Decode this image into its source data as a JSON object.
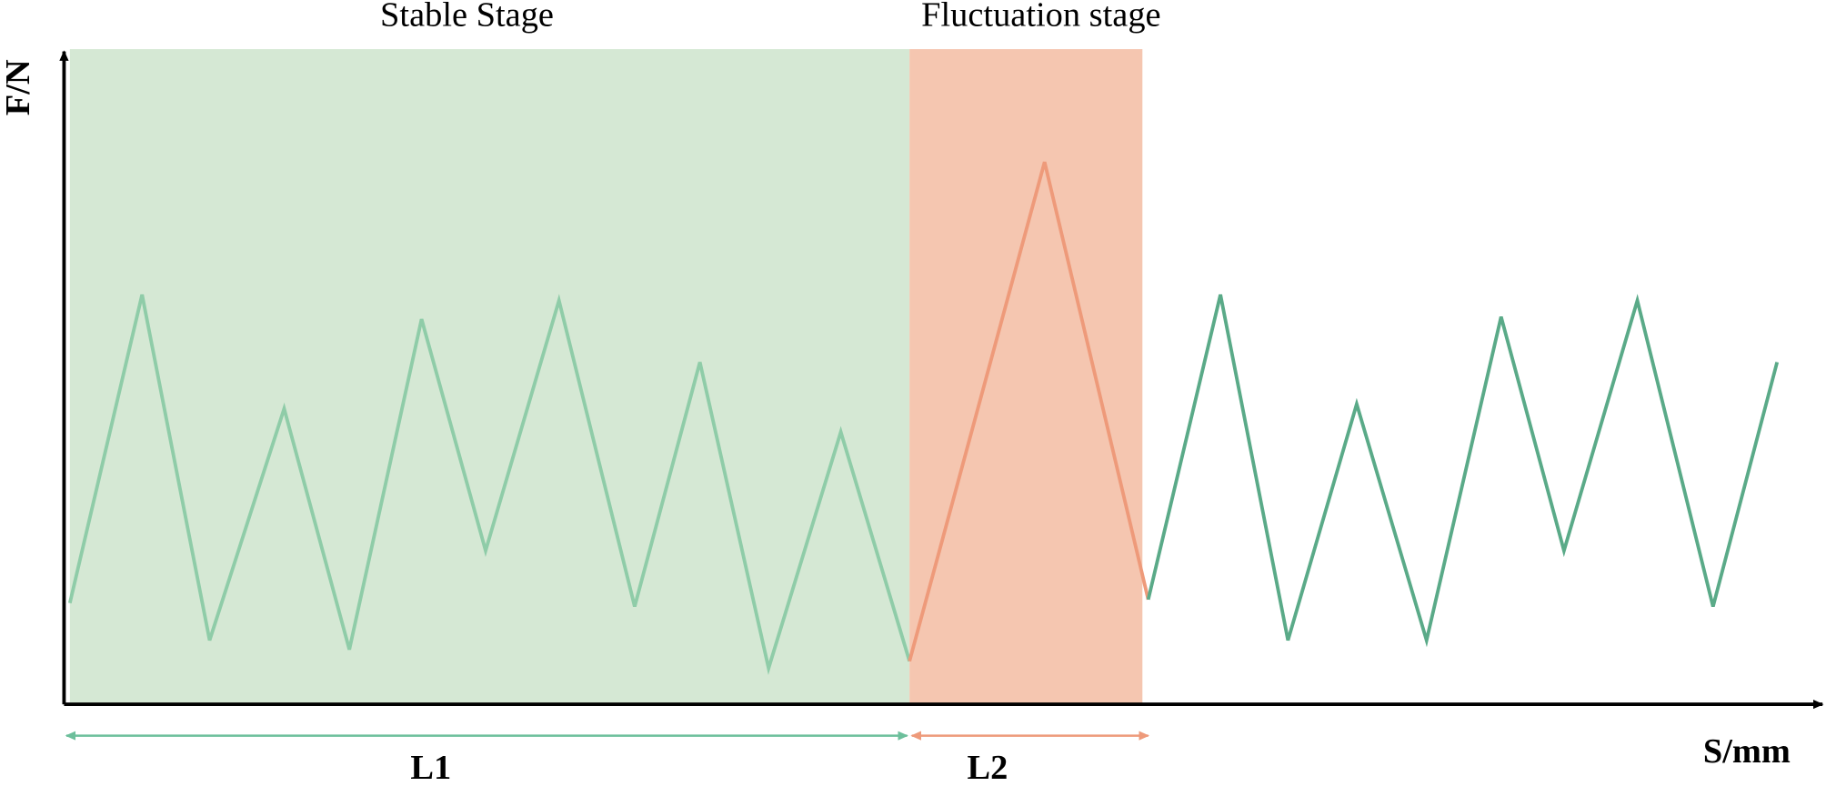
{
  "stages": [
    {
      "label": "Stable Stage",
      "span_label": "L1"
    },
    {
      "label": "Fluctuation stage",
      "span_label": "L2"
    }
  ],
  "axes": {
    "y_label": "F/N",
    "x_label": "S/mm"
  }
}
